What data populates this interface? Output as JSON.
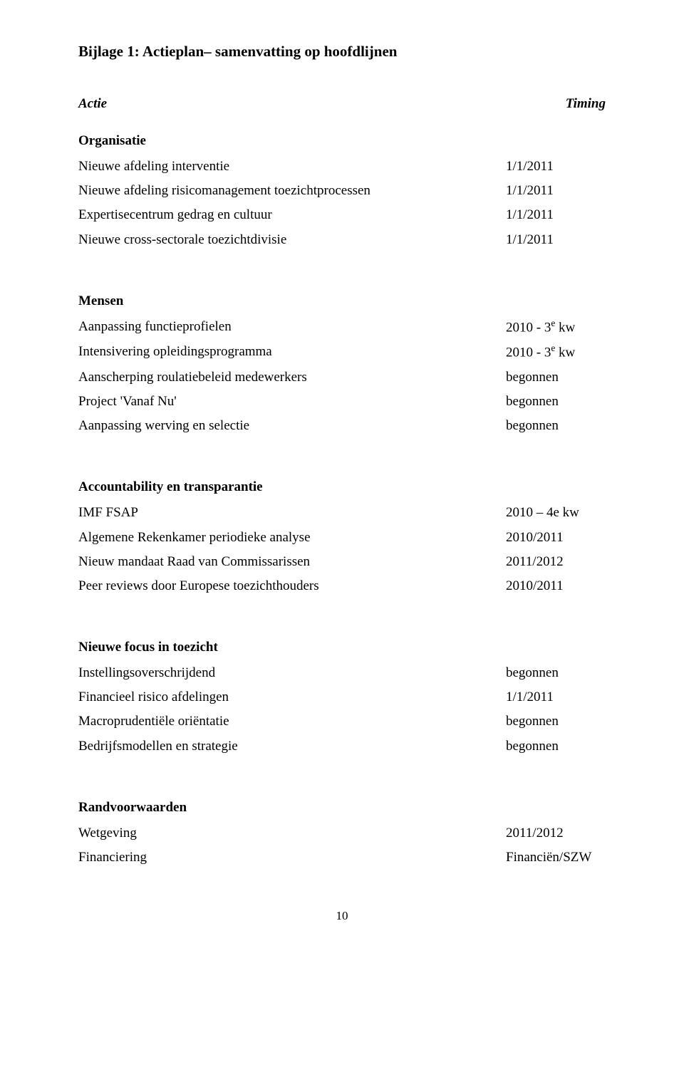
{
  "title": "Bijlage 1: Actieplan– samenvatting op hoofdlijnen",
  "header": {
    "left": "Actie",
    "right": "Timing"
  },
  "sections": [
    {
      "heading": "Organisatie",
      "rows": [
        {
          "left": "Nieuwe afdeling interventie",
          "right": "1/1/2011"
        },
        {
          "left": "Nieuwe afdeling risicomanagement toezichtprocessen",
          "right": "1/1/2011"
        },
        {
          "left": "Expertisecentrum gedrag en cultuur",
          "right": "1/1/2011"
        },
        {
          "left": "Nieuwe cross-sectorale toezichtdivisie",
          "right": "1/1/2011"
        }
      ]
    },
    {
      "heading": "Mensen",
      "rows": [
        {
          "left": "Aanpassing functieprofielen",
          "right_html": "2010 - 3<span class=\"sup\">e</span> kw"
        },
        {
          "left": "Intensivering opleidingsprogramma",
          "right_html": "2010 - 3<span class=\"sup\">e</span> kw"
        },
        {
          "left": "Aanscherping roulatiebeleid medewerkers",
          "right": "begonnen"
        },
        {
          "left": "Project 'Vanaf Nu'",
          "right": "begonnen"
        },
        {
          "left": "Aanpassing werving en selectie",
          "right": "begonnen"
        }
      ]
    },
    {
      "heading": "Accountability en transparantie",
      "rows": [
        {
          "left": "IMF FSAP",
          "right": "2010 – 4e kw"
        },
        {
          "left": "Algemene Rekenkamer periodieke analyse",
          "right": "2010/2011"
        },
        {
          "left": "Nieuw mandaat Raad van Commissarissen",
          "right": "2011/2012"
        },
        {
          "left": "Peer reviews door Europese toezichthouders",
          "right": "2010/2011"
        }
      ]
    },
    {
      "heading": "Nieuwe focus in toezicht",
      "rows": [
        {
          "left": "Instellingsoverschrijdend",
          "right": "begonnen"
        },
        {
          "left": "Financieel risico afdelingen",
          "right": "1/1/2011"
        },
        {
          "left": "Macroprudentiële oriëntatie",
          "right": "begonnen"
        },
        {
          "left": "Bedrijfsmodellen en strategie",
          "right": "begonnen"
        }
      ]
    },
    {
      "heading": "Randvoorwaarden",
      "rows": [
        {
          "left": "Wetgeving",
          "right": "2011/2012"
        },
        {
          "left": "Financiering",
          "right": "Financiën/SZW"
        }
      ]
    }
  ],
  "page_number": "10"
}
